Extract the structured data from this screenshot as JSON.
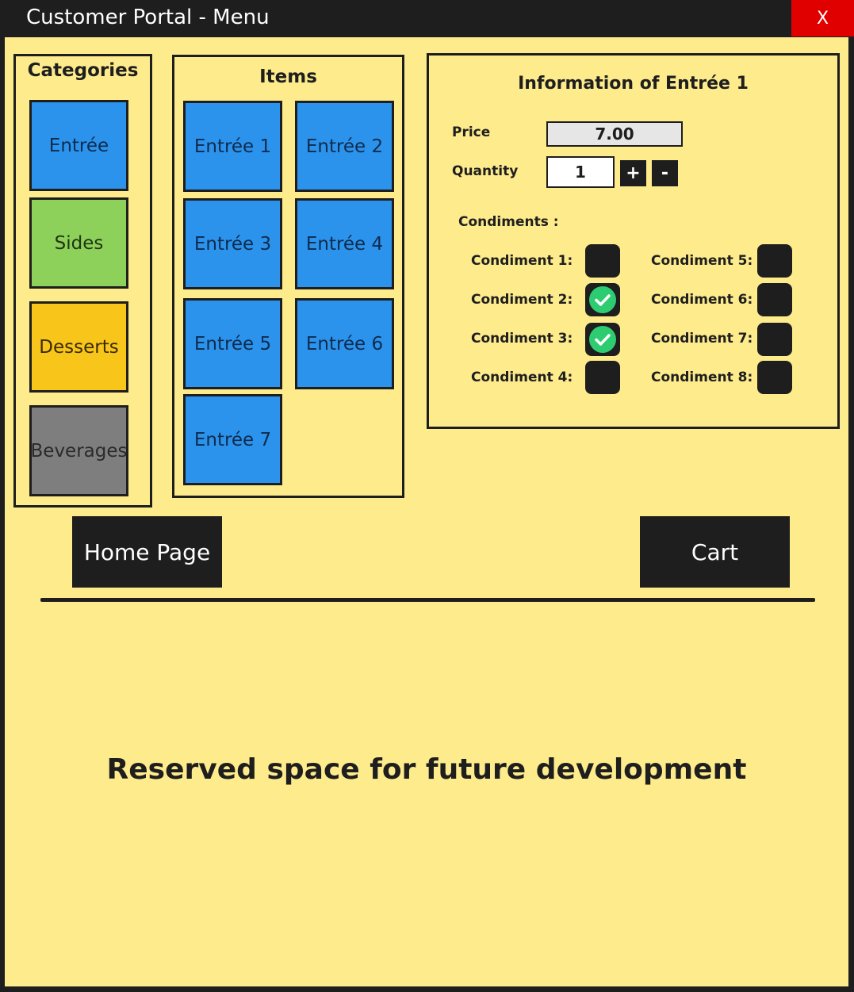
{
  "window": {
    "title": "Customer Portal - Menu",
    "close_label": "X"
  },
  "categories": {
    "heading": "Categories",
    "items": [
      {
        "label": "Entrée",
        "color": "#2b93ec"
      },
      {
        "label": "Sides",
        "color": "#8dd15a"
      },
      {
        "label": "Desserts",
        "color": "#f8c51b"
      },
      {
        "label": "Beverages",
        "color": "#7e7e7e"
      }
    ]
  },
  "items": {
    "heading": "Items",
    "list": [
      "Entrée 1",
      "Entrée 2",
      "Entrée 3",
      "Entrée 4",
      "Entrée 5",
      "Entrée 6",
      "Entrée 7"
    ]
  },
  "info": {
    "heading": "Information of Entrée 1",
    "price_label": "Price",
    "price_value": "7.00",
    "quantity_label": "Quantity",
    "quantity_value": "1",
    "plus_label": "+",
    "minus_label": "-",
    "condiments_heading": "Condiments :",
    "condiments": [
      {
        "label": "Condiment 1:",
        "checked": false
      },
      {
        "label": "Condiment 2:",
        "checked": true
      },
      {
        "label": "Condiment 3:",
        "checked": true
      },
      {
        "label": "Condiment 4:",
        "checked": false
      },
      {
        "label": "Condiment 5:",
        "checked": false
      },
      {
        "label": "Condiment 6:",
        "checked": false
      },
      {
        "label": "Condiment 7:",
        "checked": false
      },
      {
        "label": "Condiment 8:",
        "checked": false
      }
    ]
  },
  "nav": {
    "home_label": "Home Page",
    "cart_label": "Cart"
  },
  "reserved_text": "Reserved space for future development",
  "colors": {
    "background": "#fdeb8c",
    "dark": "#1e1e1e",
    "close": "#e10000",
    "check": "#2ecc71"
  }
}
